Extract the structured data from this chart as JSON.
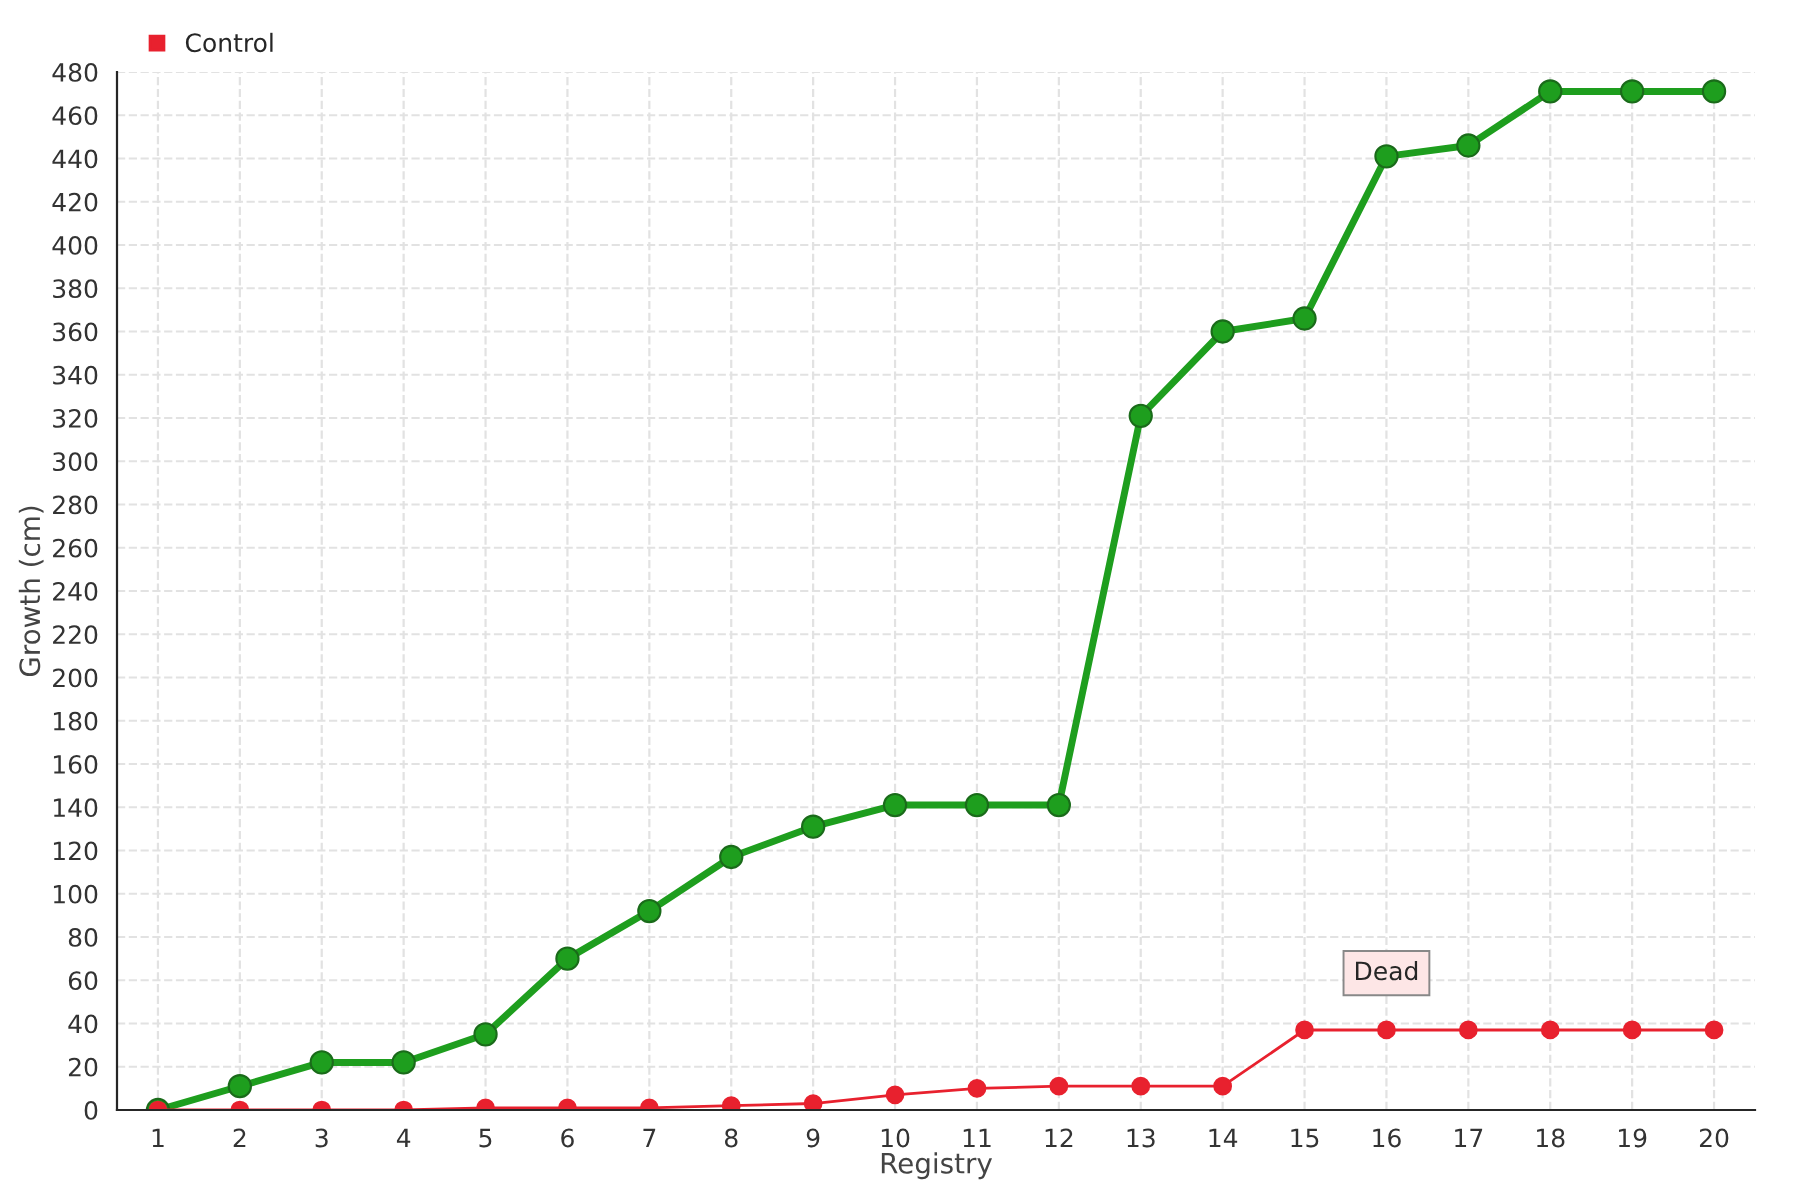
{
  "chart_data": {
    "type": "line",
    "xlabel": "Registry",
    "ylabel": "Growth (cm)",
    "categories": [
      "1",
      "2",
      "3",
      "4",
      "5",
      "6",
      "7",
      "8",
      "9",
      "10",
      "11",
      "12",
      "13",
      "14",
      "15",
      "16",
      "17",
      "18",
      "19",
      "20"
    ],
    "series": [
      {
        "color": "#1e9e1e",
        "values": [
          0,
          11,
          22,
          22,
          35,
          70,
          92,
          117,
          131,
          141,
          141,
          141,
          321,
          360,
          366,
          441,
          446,
          471,
          471,
          471
        ]
      },
      {
        "name": "Control",
        "color": "#e8212e",
        "values": [
          0,
          0,
          0,
          0,
          1,
          1,
          1,
          2,
          3,
          7,
          10,
          11,
          11,
          11,
          37,
          37,
          37,
          37,
          37,
          37
        ]
      }
    ],
    "ylim": [
      0,
      480
    ],
    "yticks": [
      0,
      20,
      40,
      60,
      80,
      100,
      120,
      140,
      160,
      180,
      200,
      220,
      240,
      260,
      280,
      300,
      320,
      340,
      360,
      380,
      400,
      420,
      440,
      460,
      480
    ],
    "annotations": [
      {
        "text": "Dead",
        "x": "16",
        "y": 37
      }
    ],
    "grid": true,
    "legend": "top left",
    "marker": "circle"
  }
}
